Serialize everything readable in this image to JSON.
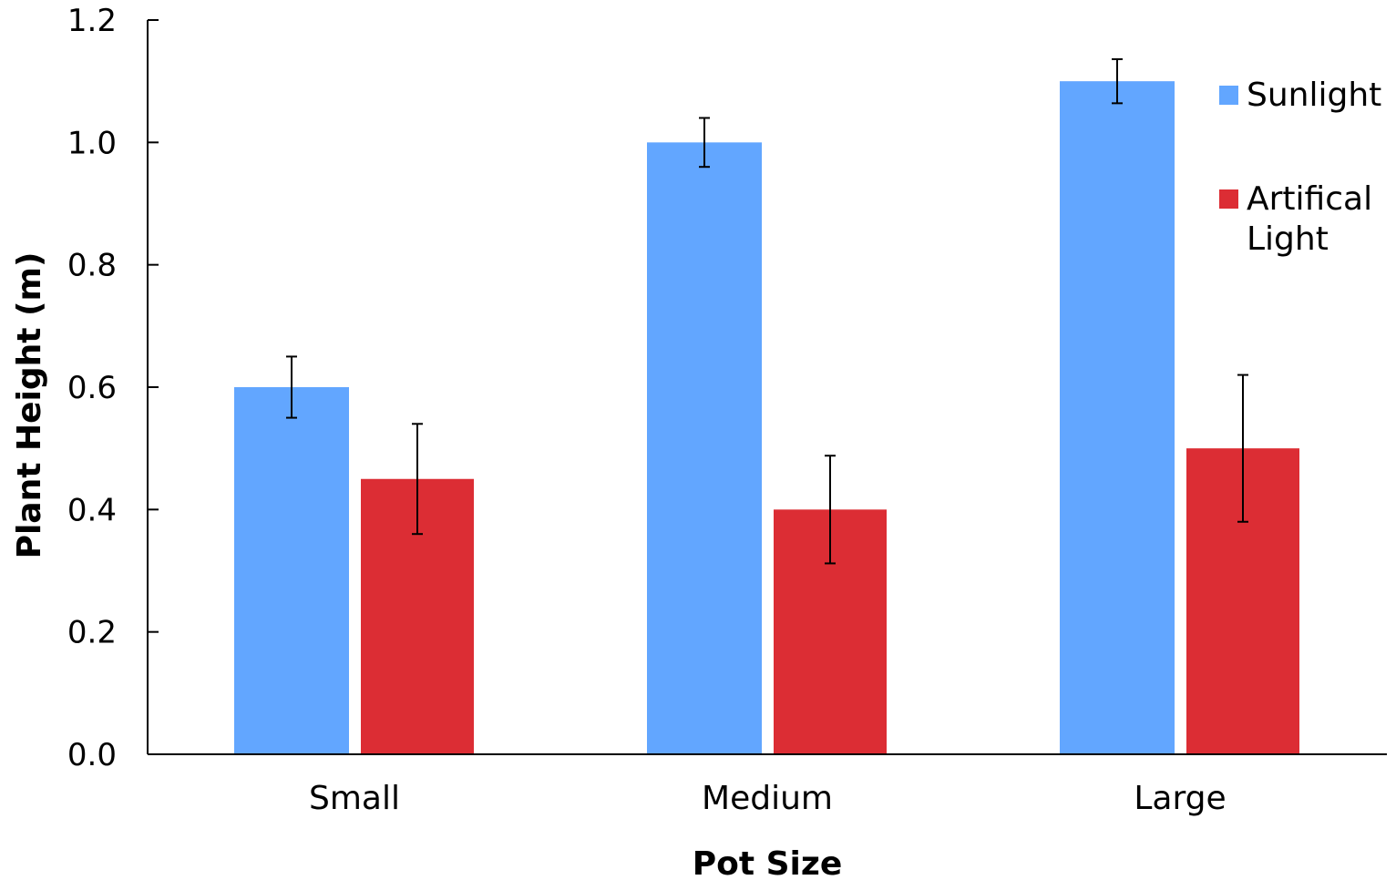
{
  "chart_data": {
    "type": "bar",
    "title": "",
    "xlabel": "Pot Size",
    "ylabel": "Plant Height (m)",
    "categories": [
      "Small",
      "Medium",
      "Large"
    ],
    "ylim": [
      0,
      1.2
    ],
    "yticks": [
      0.0,
      0.2,
      0.4,
      0.6,
      0.8,
      1.0,
      1.2
    ],
    "ytick_labels": [
      "0.0",
      "0.2",
      "0.4",
      "0.6",
      "0.8",
      "1.0",
      "1.2"
    ],
    "grid": false,
    "legend_position": "top-right",
    "series": [
      {
        "name": "Sunlight",
        "legend_lines": [
          "Sunlight"
        ],
        "color": "#62a6ff",
        "values": [
          0.6,
          1.0,
          1.1
        ],
        "error": [
          0.05,
          0.04,
          0.036
        ]
      },
      {
        "name": "Artifical Light",
        "legend_lines": [
          "Artifical",
          "Light"
        ],
        "color": "#dc2d34",
        "values": [
          0.45,
          0.4,
          0.5
        ],
        "error": [
          0.09,
          0.088,
          0.12
        ]
      }
    ]
  }
}
